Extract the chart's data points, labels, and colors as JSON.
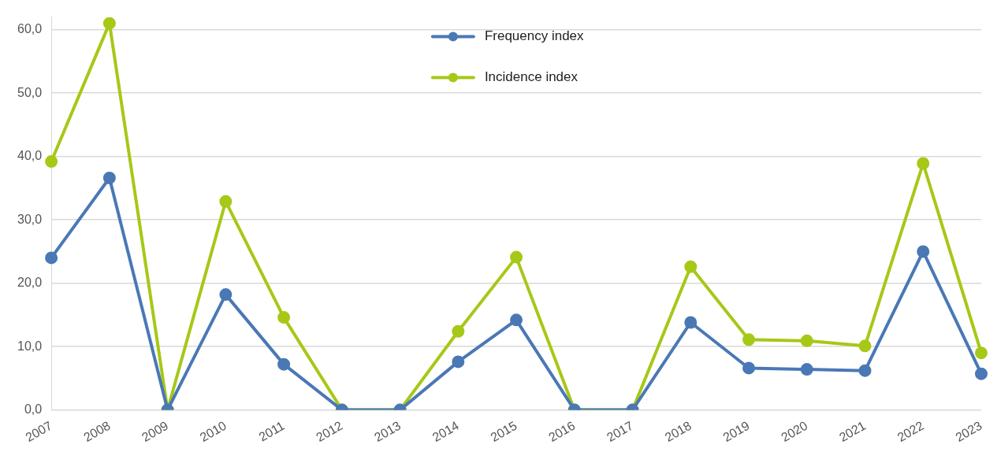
{
  "chart_data": {
    "type": "line",
    "categories": [
      "2007",
      "2008",
      "2009",
      "2010",
      "2011",
      "2012",
      "2013",
      "2014",
      "2015",
      "2016",
      "2017",
      "2018",
      "2019",
      "2020",
      "2021",
      "2022",
      "2023"
    ],
    "series": [
      {
        "name": "Frequency index",
        "color": "#4a78b5",
        "values": [
          24.0,
          36.6,
          0,
          18.2,
          7.2,
          0,
          0,
          7.6,
          14.2,
          0,
          0,
          13.8,
          6.6,
          6.4,
          6.2,
          25.0,
          5.7
        ]
      },
      {
        "name": "Incidence index",
        "color": "#a6c817",
        "values": [
          39.2,
          61.0,
          0,
          32.9,
          14.6,
          0,
          0,
          12.4,
          24.1,
          0,
          0,
          22.6,
          11.1,
          10.9,
          10.1,
          38.9,
          9.0
        ]
      }
    ],
    "ylim": [
      0,
      62
    ],
    "yticks": [
      {
        "value": 0,
        "label": "0,0"
      },
      {
        "value": 10,
        "label": "10,0"
      },
      {
        "value": 20,
        "label": "20,0"
      },
      {
        "value": 30,
        "label": "30,0"
      },
      {
        "value": 40,
        "label": "40,0"
      },
      {
        "value": 50,
        "label": "50,0"
      },
      {
        "value": 60,
        "label": "60,0"
      }
    ],
    "grid": "y",
    "legend": "top",
    "marker": "circle",
    "line_style": "solid"
  }
}
